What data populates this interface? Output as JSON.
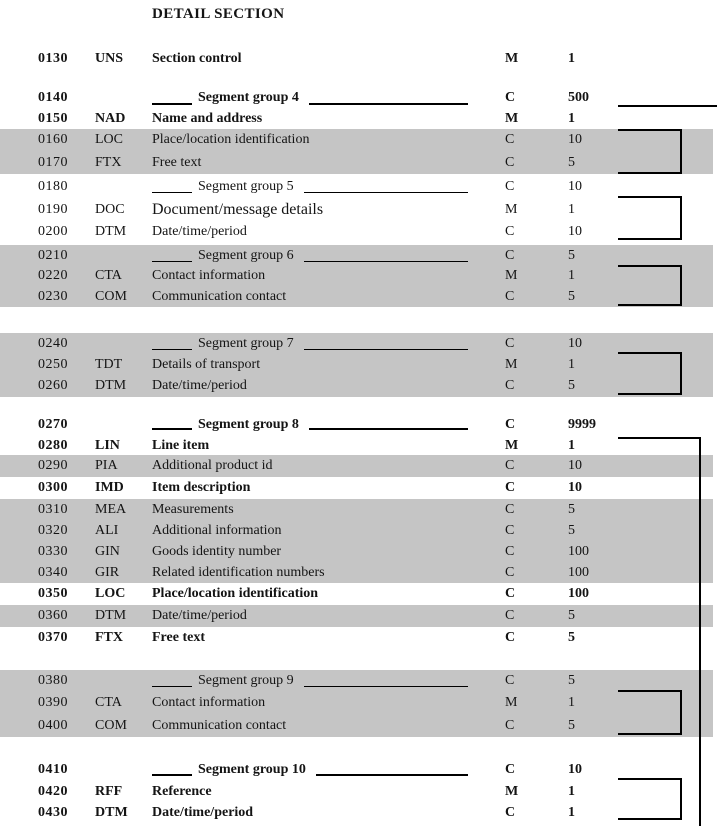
{
  "page": {
    "title": "DETAIL SECTION",
    "colors": {
      "row_shade": "#c5c5c5",
      "line": "#000000",
      "text": "#141414",
      "background": "#ffffff"
    }
  },
  "table": {
    "rows": [
      {
        "pos": "0130",
        "tag": "UNS",
        "desc": "Section control",
        "status": "M",
        "rep": "1",
        "bold": true,
        "shaded": false,
        "header": false
      },
      {
        "pos": "0140",
        "tag": "",
        "desc": "Segment group 4",
        "status": "C",
        "rep": "500",
        "bold": true,
        "shaded": false,
        "header": true
      },
      {
        "pos": "0150",
        "tag": "NAD",
        "desc": "Name and address",
        "status": "M",
        "rep": "1",
        "bold": true,
        "shaded": false,
        "header": false
      },
      {
        "pos": "0160",
        "tag": "LOC",
        "desc": "Place/location identification",
        "status": "C",
        "rep": "10",
        "bold": false,
        "shaded": true,
        "header": false
      },
      {
        "pos": "0170",
        "tag": "FTX",
        "desc": "Free text",
        "status": "C",
        "rep": "5",
        "bold": false,
        "shaded": true,
        "header": false
      },
      {
        "pos": "0180",
        "tag": "",
        "desc": "Segment group 5",
        "status": "C",
        "rep": "10",
        "bold": false,
        "shaded": false,
        "header": true
      },
      {
        "pos": "0190",
        "tag": "DOC",
        "desc": "Document/message details",
        "status": "M",
        "rep": "1",
        "bold": false,
        "shaded": false,
        "header": false,
        "desc_large": true
      },
      {
        "pos": "0200",
        "tag": "DTM",
        "desc": "Date/time/period",
        "status": "C",
        "rep": "10",
        "bold": false,
        "shaded": false,
        "header": false
      },
      {
        "pos": "0210",
        "tag": "",
        "desc": "Segment group 6",
        "status": "C",
        "rep": "5",
        "bold": false,
        "shaded": true,
        "header": true
      },
      {
        "pos": "0220",
        "tag": "CTA",
        "desc": "Contact information",
        "status": "M",
        "rep": "1",
        "bold": false,
        "shaded": true,
        "header": false
      },
      {
        "pos": "0230",
        "tag": "COM",
        "desc": "Communication contact",
        "status": "C",
        "rep": "5",
        "bold": false,
        "shaded": true,
        "header": false
      },
      {
        "pos": "0240",
        "tag": "",
        "desc": "Segment group 7",
        "status": "C",
        "rep": "10",
        "bold": false,
        "shaded": true,
        "header": true
      },
      {
        "pos": "0250",
        "tag": "TDT",
        "desc": "Details of transport",
        "status": "M",
        "rep": "1",
        "bold": false,
        "shaded": true,
        "header": false
      },
      {
        "pos": "0260",
        "tag": "DTM",
        "desc": "Date/time/period",
        "status": "C",
        "rep": "5",
        "bold": false,
        "shaded": true,
        "header": false
      },
      {
        "pos": "0270",
        "tag": "",
        "desc": "Segment group 8",
        "status": "C",
        "rep": "9999",
        "bold": true,
        "shaded": false,
        "header": true
      },
      {
        "pos": "0280",
        "tag": "LIN",
        "desc": "Line item",
        "status": "M",
        "rep": "1",
        "bold": true,
        "shaded": false,
        "header": false
      },
      {
        "pos": "0290",
        "tag": "PIA",
        "desc": "Additional product id",
        "status": "C",
        "rep": "10",
        "bold": false,
        "shaded": true,
        "header": false
      },
      {
        "pos": "0300",
        "tag": "IMD",
        "desc": "Item description",
        "status": "C",
        "rep": "10",
        "bold": true,
        "shaded": false,
        "header": false
      },
      {
        "pos": "0310",
        "tag": "MEA",
        "desc": "Measurements",
        "status": "C",
        "rep": "5",
        "bold": false,
        "shaded": true,
        "header": false
      },
      {
        "pos": "0320",
        "tag": "ALI",
        "desc": "Additional information",
        "status": "C",
        "rep": "5",
        "bold": false,
        "shaded": true,
        "header": false
      },
      {
        "pos": "0330",
        "tag": "GIN",
        "desc": "Goods identity number",
        "status": "C",
        "rep": "100",
        "bold": false,
        "shaded": true,
        "header": false
      },
      {
        "pos": "0340",
        "tag": "GIR",
        "desc": "Related identification numbers",
        "status": "C",
        "rep": "100",
        "bold": false,
        "shaded": true,
        "header": false
      },
      {
        "pos": "0350",
        "tag": "LOC",
        "desc": "Place/location identification",
        "status": "C",
        "rep": "100",
        "bold": true,
        "shaded": false,
        "header": false
      },
      {
        "pos": "0360",
        "tag": "DTM",
        "desc": "Date/time/period",
        "status": "C",
        "rep": "5",
        "bold": false,
        "shaded": true,
        "header": false
      },
      {
        "pos": "0370",
        "tag": "FTX",
        "desc": "Free text",
        "status": "C",
        "rep": "5",
        "bold": true,
        "shaded": false,
        "header": false
      },
      {
        "pos": "0380",
        "tag": "",
        "desc": "Segment group 9",
        "status": "C",
        "rep": "5",
        "bold": false,
        "shaded": true,
        "header": true
      },
      {
        "pos": "0390",
        "tag": "CTA",
        "desc": "Contact information",
        "status": "M",
        "rep": "1",
        "bold": false,
        "shaded": true,
        "header": false
      },
      {
        "pos": "0400",
        "tag": "COM",
        "desc": "Communication contact",
        "status": "C",
        "rep": "5",
        "bold": false,
        "shaded": true,
        "header": false
      },
      {
        "pos": "0410",
        "tag": "",
        "desc": "Segment group 10",
        "status": "C",
        "rep": "10",
        "bold": true,
        "shaded": false,
        "header": true
      },
      {
        "pos": "0420",
        "tag": "RFF",
        "desc": "Reference",
        "status": "M",
        "rep": "1",
        "bold": true,
        "shaded": false,
        "header": false
      },
      {
        "pos": "0430",
        "tag": "DTM",
        "desc": "Date/time/period",
        "status": "C",
        "rep": "1",
        "bold": true,
        "shaded": false,
        "header": false
      }
    ]
  }
}
